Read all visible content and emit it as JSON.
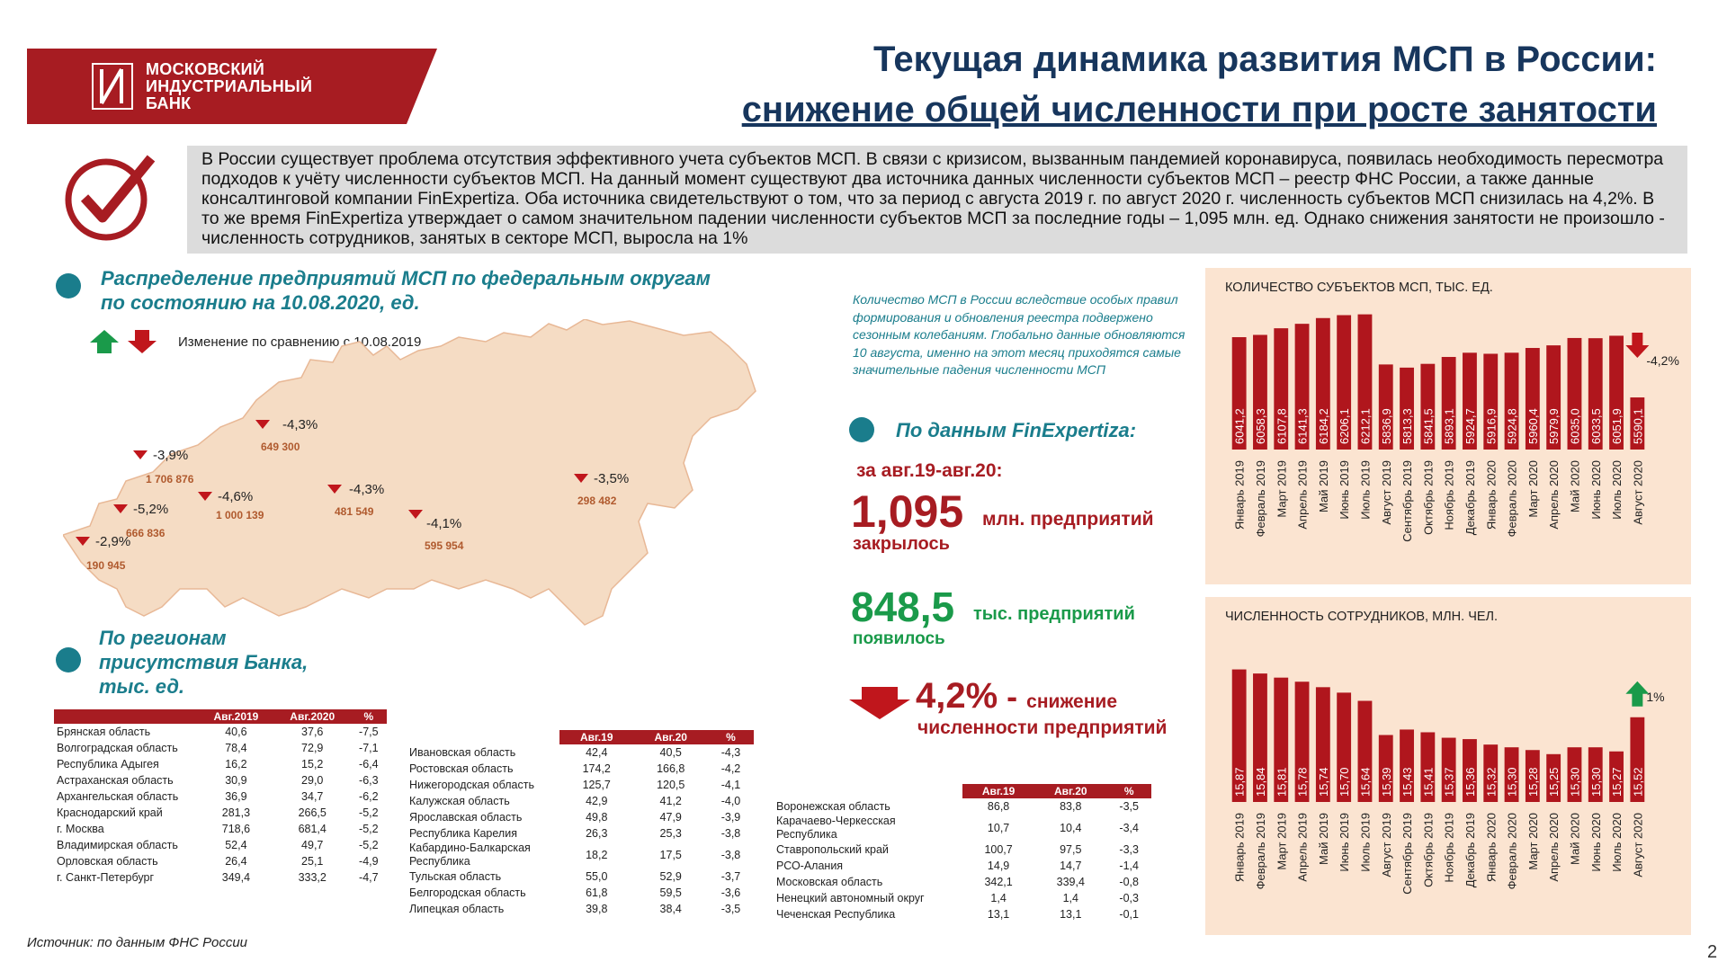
{
  "header": {
    "logo_line1": "МОСКОВСКИЙ",
    "logo_line2": "ИНДУСТРИАЛЬНЫЙ",
    "logo_line3": "БАНК",
    "title_line1": "Текущая динамика развития МСП в России:",
    "title_line2": "снижение общей численности при росте занятости"
  },
  "intro_text": "В России существует проблема отсутствия эффективного учета субъектов МСП. В связи с кризисом, вызванным пандемией коронавируса, появилась необходимость пересмотра подходов к учёту численности субъектов МСП. На данный момент существуют два источника данных численности субъектов МСП – реестр ФНС России, а также данные консалтинговой компании FinExpertiza. Оба источника свидетельствуют о том, что за период с августа 2019 г. по август 2020 г. численность субъектов МСП снизилась на 4,2%. В то же время FinExpertiza утверждает о самом значительном падении численности субъектов МСП за последние годы – 1,095 млн. ед. Однако снижения занятости не произошло - численность сотрудников, занятых в секторе МСП, выросла на 1%",
  "map_section": {
    "title_line1": "Распределение предприятий МСП по федеральным округам",
    "title_line2": "по состоянию на 10.08.2020, ед.",
    "legend": "Изменение по сравнению с 10.08.2019",
    "districts": [
      {
        "value": "649 300",
        "change": "-4,3%"
      },
      {
        "value": "1 706 876",
        "change": "-3,9%"
      },
      {
        "value": "1 000 139",
        "change": "-4,6%"
      },
      {
        "value": "481 549",
        "change": "-4,3%"
      },
      {
        "value": "666 836",
        "change": "-5,2%"
      },
      {
        "value": "190 945",
        "change": "-2,9%"
      },
      {
        "value": "595 954",
        "change": "-4,1%"
      },
      {
        "value": "298 482",
        "change": "-3,5%"
      }
    ]
  },
  "regions_section": {
    "title_line1": "По регионам",
    "title_line2": "присутствия Банка,",
    "title_line3": "тыс. ед.",
    "col_2019": "Авг.2019",
    "col_2020": "Авг.2020",
    "col_19": "Авг.19",
    "col_20": "Авг.20",
    "col_pct": "%",
    "table1": [
      [
        "Брянская область",
        "40,6",
        "37,6",
        "-7,5"
      ],
      [
        "Волгоградская область",
        "78,4",
        "72,9",
        "-7,1"
      ],
      [
        "Республика Адыгея",
        "16,2",
        "15,2",
        "-6,4"
      ],
      [
        "Астраханская область",
        "30,9",
        "29,0",
        "-6,3"
      ],
      [
        "Архангельская область",
        "36,9",
        "34,7",
        "-6,2"
      ],
      [
        "Краснодарский край",
        "281,3",
        "266,5",
        "-5,2"
      ],
      [
        "г. Москва",
        "718,6",
        "681,4",
        "-5,2"
      ],
      [
        "Владимирская область",
        "52,4",
        "49,7",
        "-5,2"
      ],
      [
        "Орловская область",
        "26,4",
        "25,1",
        "-4,9"
      ],
      [
        "г. Санкт-Петербург",
        "349,4",
        "333,2",
        "-4,7"
      ]
    ],
    "table2": [
      [
        "Ивановская область",
        "42,4",
        "40,5",
        "-4,3"
      ],
      [
        "Ростовская область",
        "174,2",
        "166,8",
        "-4,2"
      ],
      [
        "Нижегородская область",
        "125,7",
        "120,5",
        "-4,1"
      ],
      [
        "Калужская область",
        "42,9",
        "41,2",
        "-4,0"
      ],
      [
        "Ярославская область",
        "49,8",
        "47,9",
        "-3,9"
      ],
      [
        "Республика Карелия",
        "26,3",
        "25,3",
        "-3,8"
      ],
      [
        "Кабардино-Балкарская\nРеспублика",
        "18,2",
        "17,5",
        "-3,8"
      ],
      [
        "Тульская область",
        "55,0",
        "52,9",
        "-3,7"
      ],
      [
        "Белгородская область",
        "61,8",
        "59,5",
        "-3,6"
      ],
      [
        "Липецкая область",
        "39,8",
        "38,4",
        "-3,5"
      ]
    ],
    "table3": [
      [
        "Воронежская область",
        "86,8",
        "83,8",
        "-3,5"
      ],
      [
        "Карачаево-Черкесская\nРеспублика",
        "10,7",
        "10,4",
        "-3,4"
      ],
      [
        "Ставропольский край",
        "100,7",
        "97,5",
        "-3,3"
      ],
      [
        "РСО-Алания",
        "14,9",
        "14,7",
        "-1,4"
      ],
      [
        "Московская область",
        "342,1",
        "339,4",
        "-0,8"
      ],
      [
        "Ненецкий автономный округ",
        "1,4",
        "1,4",
        "-0,3"
      ],
      [
        "Чеченская Республика",
        "13,1",
        "13,1",
        "-0,1"
      ]
    ]
  },
  "source": "Источник: по данным ФНС России",
  "page_number": "2",
  "finexpertiza": {
    "note": "Количество МСП в России вследствие особых правил формирования и обновления реестра подвержено сезонным колебаниям. Глобально данные обновляются 10 августа, именно на этот месяц приходятся самые значительные падения численности МСП",
    "title": "По данным FinExpertiza:",
    "period": "за авг.19-авг.20:",
    "closed_value": "1,095",
    "closed_unit": "млн. предприятий",
    "closed_label": "закрылось",
    "opened_value": "848,5",
    "opened_unit": "тыс. предприятий",
    "opened_label": "появилось",
    "decline_value": "4,2%",
    "decline_dash": " - ",
    "decline_word": "снижение",
    "decline_label": "численности предприятий"
  },
  "colors": {
    "brand_red": "#a71c22",
    "teal": "#1a7d8c",
    "navy": "#17365d",
    "green": "#1a9a4a",
    "panel": "#fbe4d1",
    "map_fill": "#f5dcc4"
  },
  "chart_data": [
    {
      "type": "bar",
      "title": "КОЛИЧЕСТВО СУБЪЕКТОВ МСП, ТЫС. ЕД.",
      "categories": [
        "Январь 2019",
        "Февраль 2019",
        "Март 2019",
        "Апрель 2019",
        "Май 2019",
        "Июнь 2019",
        "Июль 2019",
        "Август 2019",
        "Сентябрь 2019",
        "Октябрь 2019",
        "Ноябрь 2019",
        "Декабрь 2019",
        "Январь 2020",
        "Февраль 2020",
        "Март 2020",
        "Апрель 2020",
        "Май 2020",
        "Июнь 2020",
        "Июль 2020",
        "Август 2020"
      ],
      "values": [
        6041.2,
        6058.3,
        6107.8,
        6141.3,
        6184.2,
        6206.1,
        6212.1,
        5836.9,
        5813.3,
        5841.5,
        5893.1,
        5924.7,
        5916.9,
        5924.8,
        5960.4,
        5979.9,
        6035.0,
        6033.5,
        6051.9,
        5590.1
      ],
      "labels": [
        "6041,2",
        "6058,3",
        "6107,8",
        "6141,3",
        "6184,2",
        "6206,1",
        "6212,1",
        "5836,9",
        "5813,3",
        "5841,5",
        "5893,1",
        "5924,7",
        "5916,9",
        "5924,8",
        "5960,4",
        "5979,9",
        "6035,0",
        "6033,5",
        "6051,9",
        "5590,1"
      ],
      "annotation": "-4,2%",
      "ylim": [
        5200,
        6250
      ]
    },
    {
      "type": "bar",
      "title": "ЧИСЛЕННОСТЬ СОТРУДНИКОВ, МЛН. ЧЕЛ.",
      "categories": [
        "Январь 2019",
        "Февраль 2019",
        "Март 2019",
        "Апрель 2019",
        "Май 2019",
        "Июнь 2019",
        "Июль 2019",
        "Август 2019",
        "Сентябрь 2019",
        "Октябрь 2019",
        "Ноябрь 2019",
        "Декабрь 2019",
        "Январь 2020",
        "Февраль 2020",
        "Март 2020",
        "Апрель 2020",
        "Май 2020",
        "Июнь 2020",
        "Июль 2020",
        "Август 2020"
      ],
      "values": [
        15.87,
        15.84,
        15.81,
        15.78,
        15.74,
        15.7,
        15.64,
        15.39,
        15.43,
        15.41,
        15.37,
        15.36,
        15.32,
        15.3,
        15.28,
        15.25,
        15.3,
        15.3,
        15.27,
        15.52
      ],
      "labels": [
        "15,87",
        "15,84",
        "15,81",
        "15,78",
        "15,74",
        "15,70",
        "15,64",
        "15,39",
        "15,43",
        "15,41",
        "15,37",
        "15,36",
        "15,32",
        "15,30",
        "15,28",
        "15,25",
        "15,30",
        "15,30",
        "15,27",
        "15,52"
      ],
      "annotation": "1%",
      "ylim": [
        14.9,
        15.9
      ]
    }
  ]
}
